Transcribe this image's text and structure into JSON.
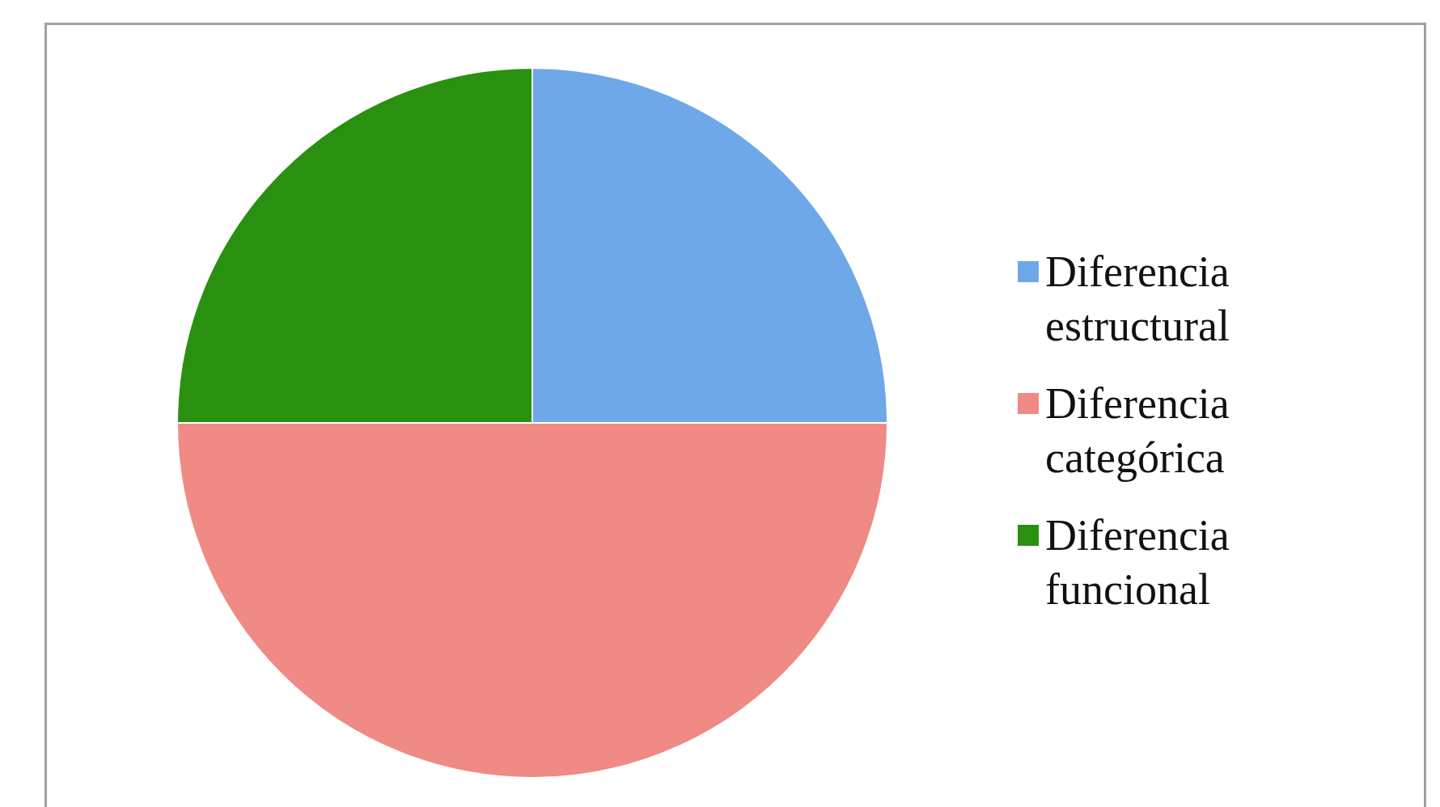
{
  "chart_data": {
    "type": "pie",
    "categories": [
      "Diferencia estructural",
      "Diferencia categórica",
      "Diferencia funcional"
    ],
    "values": [
      25,
      50,
      25
    ],
    "colors": [
      "#6fa8e8",
      "#f08a85",
      "#2a9010"
    ],
    "legend": "right"
  }
}
